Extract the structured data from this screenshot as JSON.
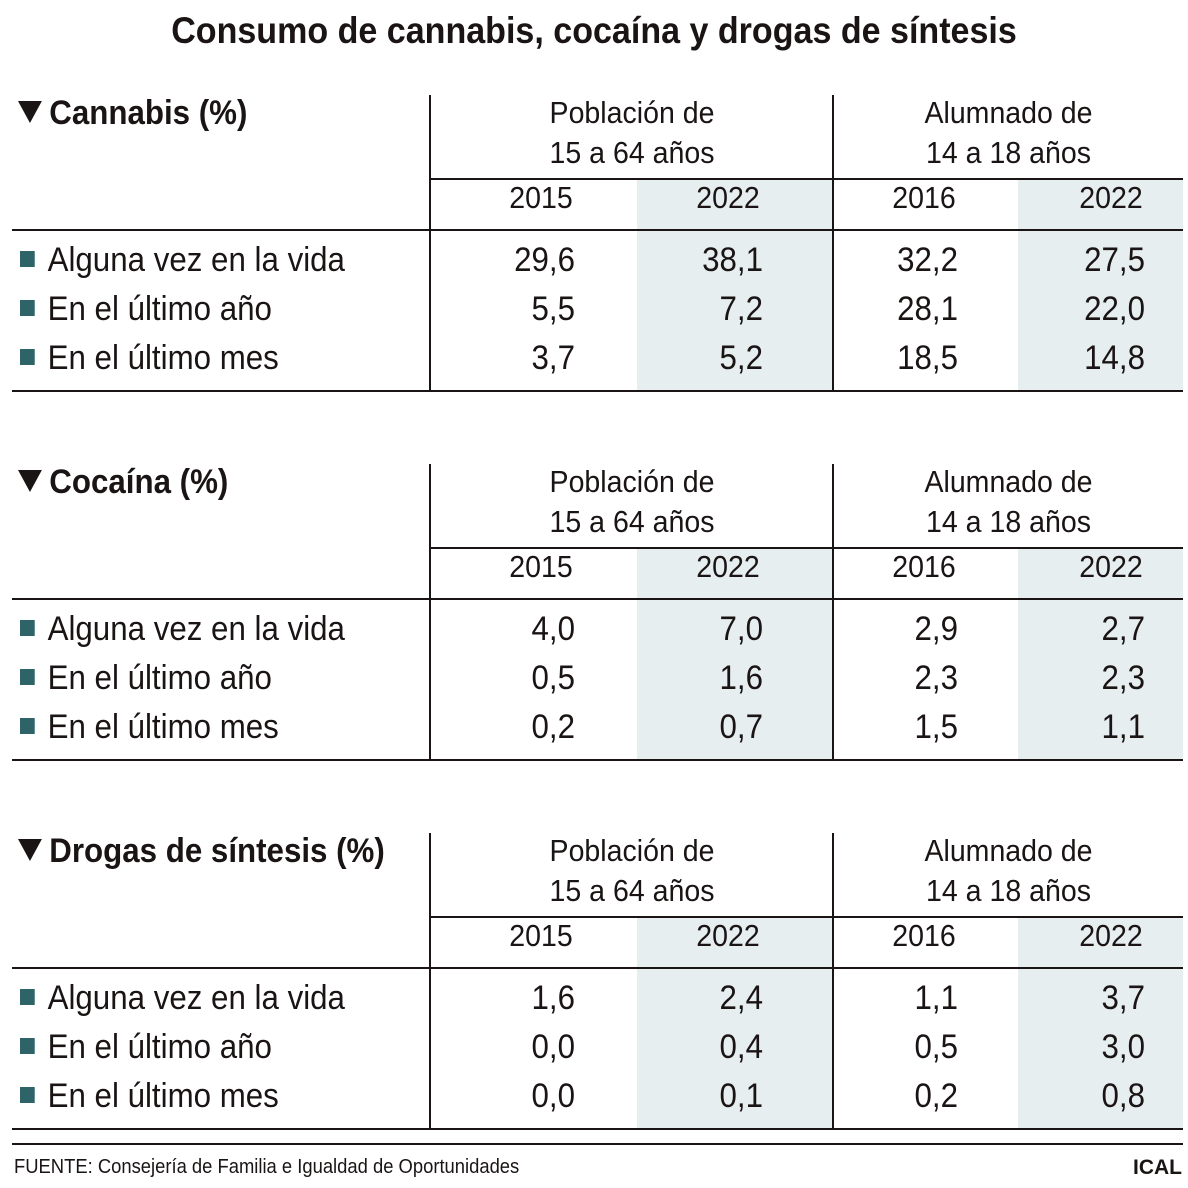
{
  "title": "Consumo de cannabis, cocaína y drogas de síntesis",
  "colors": {
    "accent_square": "#2e6468",
    "shade": "#e6eef0",
    "text": "#1a1414"
  },
  "groups": [
    {
      "line1": "Población de",
      "line2": "15 a 64 años",
      "years": [
        "2015",
        "2022"
      ]
    },
    {
      "line1": "Alumnado de",
      "line2": "14 a 18 años",
      "years": [
        "2016",
        "2022"
      ]
    }
  ],
  "row_labels": [
    "Alguna vez en la vida",
    "En el último año",
    "En el último mes"
  ],
  "sections": [
    {
      "title": "Cannabis (%)",
      "rows": [
        [
          "29,6",
          "38,1",
          "32,2",
          "27,5"
        ],
        [
          "5,5",
          "7,2",
          "28,1",
          "22,0"
        ],
        [
          "3,7",
          "5,2",
          "18,5",
          "14,8"
        ]
      ]
    },
    {
      "title": "Cocaína (%)",
      "rows": [
        [
          "4,0",
          "7,0",
          "2,9",
          "2,7"
        ],
        [
          "0,5",
          "1,6",
          "2,3",
          "2,3"
        ],
        [
          "0,2",
          "0,7",
          "1,5",
          "1,1"
        ]
      ]
    },
    {
      "title": "Drogas de síntesis (%)",
      "rows": [
        [
          "1,6",
          "2,4",
          "1,1",
          "3,7"
        ],
        [
          "0,0",
          "0,4",
          "0,5",
          "3,0"
        ],
        [
          "0,0",
          "0,1",
          "0,2",
          "0,8"
        ]
      ]
    }
  ],
  "footer": {
    "source": "FUENTE: Consejería de Familia e Igualdad de Oportunidades",
    "brand": "ICAL"
  }
}
